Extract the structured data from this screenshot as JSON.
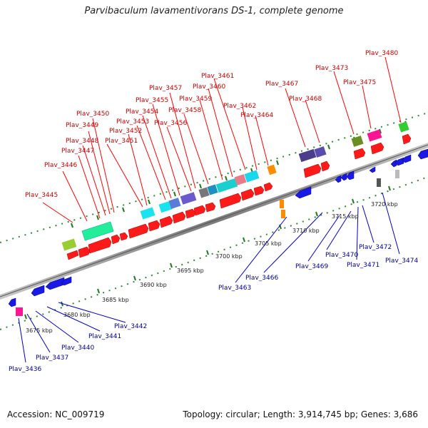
{
  "title": "Parvibaculum lavamentivorans DS-1, complete genome",
  "footer": {
    "accession": "Accession: NC_009719",
    "summary": "Topology: circular; Length: 3,914,745 bp; Genes: 3,686"
  },
  "colors": {
    "forward_gene": "#ff1a1a",
    "reverse_gene": "#1e1ee6",
    "forward_label": "#cc0000",
    "reverse_label": "#00009c",
    "backbone": "#9a9a9a",
    "dots": "#2e8b2e"
  },
  "axis": {
    "ticks": [
      "3675 kbp",
      "3680 kbp",
      "3685 kbp",
      "3690 kbp",
      "3695 kbp",
      "3700 kbp",
      "3705 kbp",
      "3710 kbp",
      "3715 kbp",
      "3720 kbp"
    ]
  },
  "genes_top": [
    "Plav_3445",
    "Plav_3446",
    "Plav_3447",
    "Plav_3448",
    "Plav_3449",
    "Plav_3450",
    "Plav_3451",
    "Plav_3452",
    "Plav_3453",
    "Plav_3454",
    "Plav_3455",
    "Plav_3456",
    "Plav_3457",
    "Plav_3458",
    "Plav_3459",
    "Plav_3460",
    "Plav_3461",
    "Plav_3462",
    "Plav_3464",
    "Plav_3467",
    "Plav_3468",
    "Plav_3473",
    "Plav_3475",
    "Plav_3480"
  ],
  "genes_bottom": [
    "Plav_3436",
    "Plav_3437",
    "Plav_3440",
    "Plav_3441",
    "Plav_3442",
    "Plav_3463",
    "Plav_3466",
    "Plav_3469",
    "Plav_3470",
    "Plav_3471",
    "Plav_3472",
    "Plav_3474"
  ]
}
